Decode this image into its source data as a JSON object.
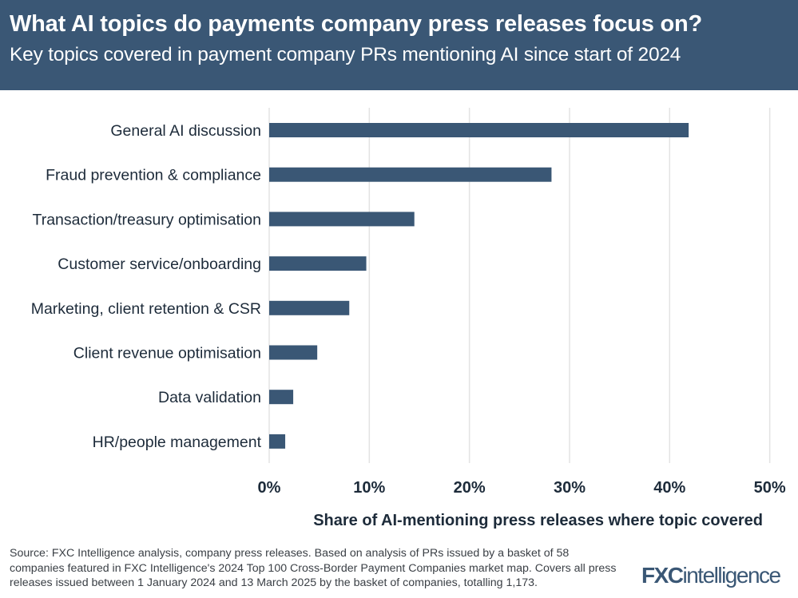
{
  "header": {
    "title": "What AI topics do payments company press releases focus on?",
    "subtitle": "Key topics covered in payment company PRs mentioning AI since start of 2024"
  },
  "chart_data": {
    "type": "bar",
    "orientation": "horizontal",
    "categories": [
      "General AI discussion",
      "Fraud prevention & compliance",
      "Transaction/treasury optimisation",
      "Customer service/onboarding",
      "Marketing, client retention & CSR",
      "Client revenue optimisation",
      "Data validation",
      "HR/people management"
    ],
    "values": [
      41.9,
      28.2,
      14.5,
      9.7,
      8.0,
      4.8,
      2.4,
      1.6
    ],
    "xlabel": "Share of AI-mentioning press releases where topic covered",
    "ylabel": "",
    "xlim": [
      0,
      50
    ],
    "ticks": [
      "0%",
      "10%",
      "20%",
      "30%",
      "40%",
      "50%"
    ],
    "grid": true,
    "bar_color": "#3a5775"
  },
  "footer": {
    "source": "Source: FXC Intelligence analysis, company press releases. Based on analysis of PRs issued by a basket of 58 companies featured in FXC Intelligence's 2024 Top 100 Cross-Border Payment Companies market map. Covers all press releases issued between 1 January 2024 and 13 March 2025 by the basket of companies, totalling 1,173.",
    "logo": "FXCintelligence"
  }
}
